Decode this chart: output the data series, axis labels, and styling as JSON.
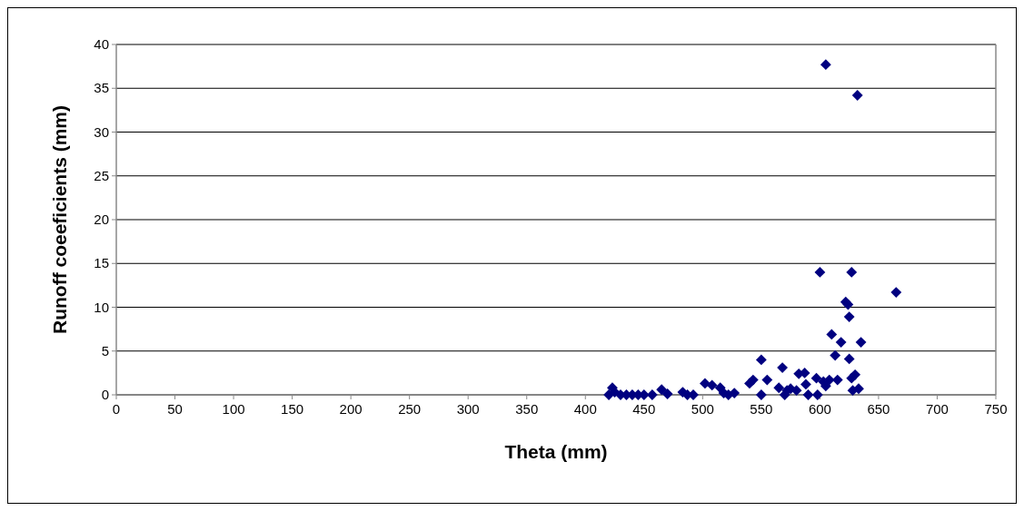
{
  "chart_data": {
    "type": "scatter",
    "xlabel": "Theta (mm)",
    "ylabel": "Runoff coeeficients (mm)",
    "marker": "diamond",
    "grid": "y",
    "xlim": [
      0,
      750
    ],
    "xticks": [
      0,
      50,
      100,
      150,
      200,
      250,
      300,
      350,
      400,
      450,
      500,
      550,
      600,
      650,
      700,
      750
    ],
    "ylim": [
      0,
      40
    ],
    "yticks": [
      0,
      5,
      10,
      15,
      20,
      25,
      30,
      35,
      40
    ],
    "series": [
      {
        "color": "#000080",
        "x": [
          420,
          423,
          425,
          430,
          435,
          440,
          445,
          450,
          457,
          465,
          470,
          483,
          487,
          492,
          502,
          508,
          515,
          518,
          522,
          527,
          540,
          543,
          550,
          550,
          555,
          565,
          568,
          570,
          572,
          575,
          580,
          582,
          587,
          588,
          590,
          597,
          598,
          600,
          603,
          605,
          605,
          608,
          610,
          613,
          615,
          618,
          622,
          624,
          625,
          625,
          627,
          627,
          628,
          630,
          632,
          633,
          635,
          665
        ],
        "values": [
          0,
          0.8,
          0.3,
          0,
          0,
          0,
          0,
          0,
          0,
          0.6,
          0.1,
          0.3,
          0,
          0,
          1.3,
          1.1,
          0.8,
          0.2,
          0,
          0.2,
          1.3,
          1.7,
          0,
          4,
          1.7,
          0.8,
          3.1,
          0,
          0.5,
          0.7,
          0.5,
          2.4,
          2.5,
          1.2,
          0,
          1.9,
          0,
          14,
          1.5,
          37.7,
          1,
          1.7,
          6.9,
          4.5,
          1.7,
          6,
          10.6,
          10.3,
          8.9,
          4.1,
          14,
          1.9,
          0.5,
          2.3,
          34.2,
          0.7,
          6,
          11.7
        ]
      }
    ]
  }
}
